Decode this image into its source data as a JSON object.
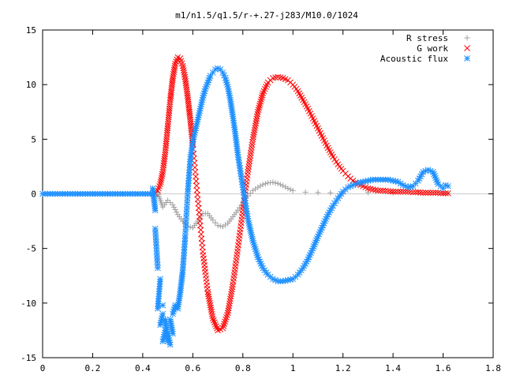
{
  "chart_data": {
    "type": "scatter",
    "title": "m1/n1.5/q1.5/r-+.27-j283/M10.0/1024",
    "xlabel": "",
    "ylabel": "",
    "xlim": [
      0,
      1.8
    ],
    "ylim": [
      -15,
      15
    ],
    "x_ticks": [
      0,
      0.2,
      0.4,
      0.6,
      0.8,
      1,
      1.2,
      1.4,
      1.6,
      1.8
    ],
    "x_tick_labels": [
      "0",
      "0.2",
      "0.4",
      "0.6",
      "0.8",
      "1",
      "1.2",
      "1.4",
      "1.6",
      "1.8"
    ],
    "y_ticks": [
      -15,
      -10,
      -5,
      0,
      5,
      10,
      15
    ],
    "y_tick_labels": [
      "-15",
      "-10",
      "-5",
      "0",
      "5",
      "10",
      "15"
    ],
    "grid": false,
    "legend_position": "top-right",
    "series": [
      {
        "name": "R stress",
        "marker": "plus",
        "color": "#a0a0a0",
        "x": [
          0.46,
          0.48,
          0.5,
          0.52,
          0.54,
          0.56,
          0.58,
          0.6,
          0.62,
          0.64,
          0.66,
          0.68,
          0.7,
          0.72,
          0.74,
          0.76,
          0.78,
          0.8,
          0.82,
          0.84,
          0.86,
          0.88,
          0.9,
          0.92,
          0.94,
          0.96,
          0.98,
          1.0,
          1.05,
          1.1,
          1.15,
          1.2,
          1.3,
          1.4,
          1.5,
          1.6,
          1.62
        ],
        "y": [
          0.1,
          -1.2,
          -0.6,
          -1.0,
          -1.9,
          -2.5,
          -3.0,
          -3.1,
          -2.5,
          -1.8,
          -1.8,
          -2.4,
          -2.9,
          -3.0,
          -2.7,
          -2.1,
          -1.5,
          -0.8,
          -0.2,
          0.3,
          0.6,
          0.85,
          1.0,
          1.05,
          0.95,
          0.75,
          0.5,
          0.3,
          0.15,
          0.12,
          0.1,
          0.1,
          0.12,
          0.1,
          0.08,
          0.05,
          0.05
        ]
      },
      {
        "name": "G work",
        "marker": "cross",
        "color": "#ff0000",
        "x": [
          0.45,
          0.46,
          0.47,
          0.48,
          0.49,
          0.5,
          0.51,
          0.52,
          0.53,
          0.54,
          0.55,
          0.56,
          0.57,
          0.58,
          0.59,
          0.6,
          0.62,
          0.64,
          0.66,
          0.68,
          0.7,
          0.72,
          0.74,
          0.76,
          0.78,
          0.8,
          0.82,
          0.84,
          0.86,
          0.88,
          0.9,
          0.92,
          0.94,
          0.96,
          0.98,
          1.0,
          1.02,
          1.04,
          1.06,
          1.08,
          1.1,
          1.12,
          1.14,
          1.16,
          1.18,
          1.2,
          1.22,
          1.24,
          1.26,
          1.28,
          1.3,
          1.32,
          1.34,
          1.36,
          1.38,
          1.4,
          1.42,
          1.44,
          1.46,
          1.48,
          1.5,
          1.52,
          1.54,
          1.56,
          1.58,
          1.6,
          1.62
        ],
        "y": [
          0.0,
          0.3,
          0.9,
          2.0,
          3.8,
          6.2,
          8.6,
          10.6,
          11.9,
          12.5,
          12.4,
          11.7,
          10.5,
          8.8,
          6.8,
          4.5,
          -0.5,
          -5.3,
          -9.0,
          -11.4,
          -12.5,
          -12.3,
          -10.9,
          -8.3,
          -5.0,
          -1.5,
          2.0,
          5.0,
          7.5,
          9.2,
          10.2,
          10.6,
          10.7,
          10.6,
          10.4,
          10.0,
          9.4,
          8.6,
          7.8,
          6.9,
          6.0,
          5.1,
          4.2,
          3.4,
          2.7,
          2.1,
          1.6,
          1.2,
          0.9,
          0.7,
          0.5,
          0.4,
          0.3,
          0.3,
          0.25,
          0.2,
          0.2,
          0.2,
          0.2,
          0.15,
          0.15,
          0.1,
          0.1,
          0.1,
          0.1,
          0.05,
          0.05
        ]
      },
      {
        "name": "Acoustic flux",
        "marker": "star",
        "color": "#1e90ff",
        "x": [
          0.0,
          0.02,
          0.04,
          0.06,
          0.08,
          0.1,
          0.12,
          0.14,
          0.16,
          0.18,
          0.2,
          0.22,
          0.24,
          0.26,
          0.28,
          0.3,
          0.32,
          0.34,
          0.36,
          0.38,
          0.4,
          0.42,
          0.44,
          0.44,
          0.45,
          0.45,
          0.46,
          0.46,
          0.47,
          0.47,
          0.48,
          0.48,
          0.48,
          0.49,
          0.49,
          0.5,
          0.5,
          0.51,
          0.51,
          0.52,
          0.52,
          0.53,
          0.54,
          0.55,
          0.56,
          0.57,
          0.58,
          0.59,
          0.6,
          0.61,
          0.62,
          0.63,
          0.64,
          0.65,
          0.66,
          0.67,
          0.68,
          0.69,
          0.7,
          0.71,
          0.72,
          0.73,
          0.74,
          0.75,
          0.76,
          0.77,
          0.78,
          0.8,
          0.82,
          0.84,
          0.86,
          0.88,
          0.9,
          0.92,
          0.94,
          0.96,
          0.98,
          1.0,
          1.02,
          1.04,
          1.06,
          1.08,
          1.1,
          1.12,
          1.14,
          1.16,
          1.18,
          1.2,
          1.22,
          1.24,
          1.26,
          1.28,
          1.3,
          1.32,
          1.34,
          1.36,
          1.38,
          1.4,
          1.42,
          1.44,
          1.46,
          1.48,
          1.5,
          1.52,
          1.54,
          1.56,
          1.58,
          1.6,
          1.61,
          1.62
        ],
        "y": [
          0.0,
          0.0,
          0.0,
          0.0,
          0.0,
          0.0,
          0.0,
          0.0,
          0.0,
          0.0,
          0.0,
          0.0,
          0.0,
          0.0,
          0.0,
          0.0,
          0.0,
          0.0,
          0.0,
          0.0,
          0.0,
          0.0,
          0.0,
          0.5,
          -1.5,
          -3.2,
          -6.8,
          -10.5,
          -7.8,
          -12.0,
          -11.0,
          -10.2,
          -13.5,
          -12.5,
          -11.5,
          -13.5,
          -12.8,
          -13.8,
          -11.5,
          -12.8,
          -11.0,
          -10.2,
          -10.5,
          -9.0,
          -7.0,
          -3.8,
          0.2,
          3.2,
          4.8,
          5.8,
          6.8,
          7.8,
          8.8,
          9.6,
          10.2,
          10.8,
          11.1,
          11.4,
          11.5,
          11.4,
          11.1,
          10.6,
          9.8,
          8.6,
          7.1,
          5.5,
          3.6,
          0.6,
          -2.3,
          -4.3,
          -5.8,
          -6.8,
          -7.4,
          -7.8,
          -8.0,
          -8.0,
          -7.9,
          -7.8,
          -7.4,
          -6.8,
          -6.0,
          -5.0,
          -3.9,
          -2.9,
          -1.9,
          -1.1,
          -0.4,
          0.2,
          0.6,
          0.8,
          1.0,
          1.1,
          1.2,
          1.3,
          1.3,
          1.3,
          1.3,
          1.2,
          1.1,
          0.8,
          0.6,
          0.7,
          1.2,
          2.0,
          2.2,
          2.0,
          0.9,
          0.5,
          0.8,
          0.7
        ]
      }
    ]
  }
}
